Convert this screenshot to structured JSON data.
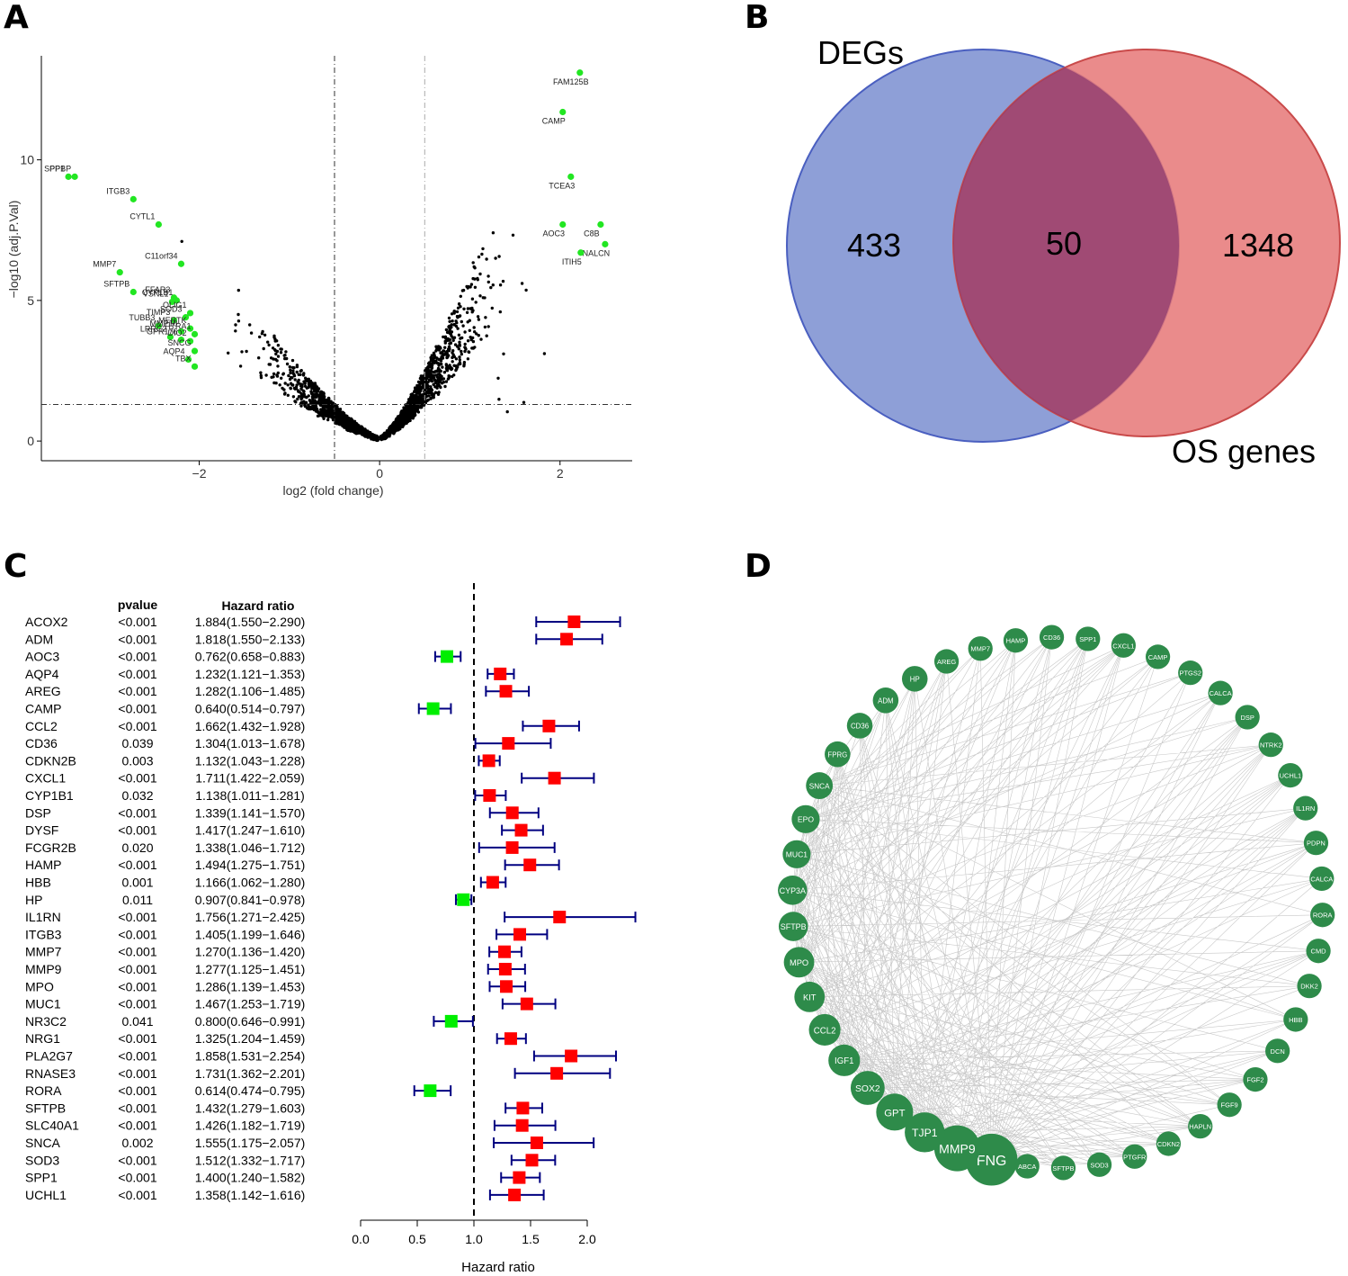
{
  "panels": {
    "a": "A",
    "b": "B",
    "c": "C",
    "d": "D"
  },
  "chart_data": [
    {
      "type": "scatter",
      "panel": "A",
      "xlabel": "log2 (fold change)",
      "ylabel": "−log10 (adj.P.Val)",
      "xlim": [
        -3.75,
        2.8
      ],
      "ylim": [
        -0.7,
        13.7
      ],
      "xticks": [
        -2,
        0,
        2
      ],
      "xtick_labels": [
        "−2",
        "0",
        "2"
      ],
      "yticks": [
        0,
        5,
        10
      ],
      "ytick_labels": [
        "0",
        "5",
        "10"
      ],
      "thresholds": {
        "logfc": [
          -0.5,
          0.5
        ],
        "padj_log": 1.3
      },
      "highlighted": [
        {
          "label": "FAM125B",
          "x": 2.22,
          "y": 13.1
        },
        {
          "label": "CAMP",
          "x": 2.03,
          "y": 11.7
        },
        {
          "label": "TCEA3",
          "x": 2.12,
          "y": 9.4
        },
        {
          "label": "C8B",
          "x": 2.45,
          "y": 7.7
        },
        {
          "label": "AOC3",
          "x": 2.03,
          "y": 7.7
        },
        {
          "label": "NALCN",
          "x": 2.5,
          "y": 7.0
        },
        {
          "label": "ITIH5",
          "x": 2.23,
          "y": 6.7
        },
        {
          "label": "PPBP",
          "x": -3.38,
          "y": 9.4
        },
        {
          "label": "SPP1",
          "x": -3.45,
          "y": 9.4
        },
        {
          "label": "ITGB3",
          "x": -2.73,
          "y": 8.6
        },
        {
          "label": "CYTL1",
          "x": -2.45,
          "y": 7.7
        },
        {
          "label": "C11orf34",
          "x": -2.2,
          "y": 6.3
        },
        {
          "label": "MMP7",
          "x": -2.88,
          "y": 6.0
        },
        {
          "label": "SFTPB",
          "x": -2.73,
          "y": 5.3
        },
        {
          "label": "FFAR3",
          "x": -2.28,
          "y": 5.1
        },
        {
          "label": "VSNL1",
          "x": -2.3,
          "y": 4.95
        },
        {
          "label": "CYP1B1",
          "x": -2.25,
          "y": 5.0
        },
        {
          "label": "TIMP3",
          "x": -2.28,
          "y": 4.3
        },
        {
          "label": "SOD3",
          "x": -2.15,
          "y": 4.4
        },
        {
          "label": "OLIG1",
          "x": -2.1,
          "y": 4.55
        },
        {
          "label": "TUBB3",
          "x": -2.45,
          "y": 4.1
        },
        {
          "label": "MMP10",
          "x": -2.2,
          "y": 3.9
        },
        {
          "label": "MERTK",
          "x": -2.1,
          "y": 4.0
        },
        {
          "label": "HTRA1",
          "x": -2.05,
          "y": 3.8
        },
        {
          "label": "LRRC2",
          "x": -2.32,
          "y": 3.7
        },
        {
          "label": "DIO2",
          "x": -2.1,
          "y": 3.55
        },
        {
          "label": "GPR176",
          "x": -2.2,
          "y": 3.6
        },
        {
          "label": "SNCG",
          "x": -2.05,
          "y": 3.2
        },
        {
          "label": "AQP4",
          "x": -2.12,
          "y": 2.9
        },
        {
          "label": "TBX",
          "x": -2.05,
          "y": 2.65
        }
      ]
    },
    {
      "type": "venn",
      "panel": "B",
      "sets": [
        {
          "name": "DEGs",
          "only": 433,
          "color": "#7b8fd0"
        },
        {
          "name": "OS genes",
          "only": 1348,
          "color": "#e77878"
        }
      ],
      "intersection": 50,
      "labels": {
        "left_only": "433",
        "both": "50",
        "right_only": "1348"
      }
    },
    {
      "type": "forest",
      "panel": "C",
      "columns": {
        "pvalue": "pvalue",
        "hr": "Hazard ratio"
      },
      "xlabel": "Hazard ratio",
      "xlim": [
        0.0,
        2.0
      ],
      "xticks": [
        0.0,
        0.5,
        1.0,
        1.5,
        2.0
      ],
      "xtick_labels": [
        "0.0",
        "0.5",
        "1.0",
        "1.5",
        "2.0"
      ],
      "reference": 1.0,
      "colors": {
        "risk": "#ff0000",
        "protective": "#00ee00",
        "ci": "#000080"
      },
      "rows": [
        {
          "gene": "ACOX2",
          "p": "<0.001",
          "hr_text": "1.884(1.550−2.290)",
          "hr": 1.884,
          "lo": 1.55,
          "hi": 2.29
        },
        {
          "gene": "ADM",
          "p": "<0.001",
          "hr_text": "1.818(1.550−2.133)",
          "hr": 1.818,
          "lo": 1.55,
          "hi": 2.133
        },
        {
          "gene": "AOC3",
          "p": "<0.001",
          "hr_text": "0.762(0.658−0.883)",
          "hr": 0.762,
          "lo": 0.658,
          "hi": 0.883
        },
        {
          "gene": "AQP4",
          "p": "<0.001",
          "hr_text": "1.232(1.121−1.353)",
          "hr": 1.232,
          "lo": 1.121,
          "hi": 1.353
        },
        {
          "gene": "AREG",
          "p": "<0.001",
          "hr_text": "1.282(1.106−1.485)",
          "hr": 1.282,
          "lo": 1.106,
          "hi": 1.485
        },
        {
          "gene": "CAMP",
          "p": "<0.001",
          "hr_text": "0.640(0.514−0.797)",
          "hr": 0.64,
          "lo": 0.514,
          "hi": 0.797
        },
        {
          "gene": "CCL2",
          "p": "<0.001",
          "hr_text": "1.662(1.432−1.928)",
          "hr": 1.662,
          "lo": 1.432,
          "hi": 1.928
        },
        {
          "gene": "CD36",
          "p": "0.039",
          "hr_text": "1.304(1.013−1.678)",
          "hr": 1.304,
          "lo": 1.013,
          "hi": 1.678
        },
        {
          "gene": "CDKN2B",
          "p": "0.003",
          "hr_text": "1.132(1.043−1.228)",
          "hr": 1.132,
          "lo": 1.043,
          "hi": 1.228
        },
        {
          "gene": "CXCL1",
          "p": "<0.001",
          "hr_text": "1.711(1.422−2.059)",
          "hr": 1.711,
          "lo": 1.422,
          "hi": 2.059
        },
        {
          "gene": "CYP1B1",
          "p": "0.032",
          "hr_text": "1.138(1.011−1.281)",
          "hr": 1.138,
          "lo": 1.011,
          "hi": 1.281
        },
        {
          "gene": "DSP",
          "p": "<0.001",
          "hr_text": "1.339(1.141−1.570)",
          "hr": 1.339,
          "lo": 1.141,
          "hi": 1.57
        },
        {
          "gene": "DYSF",
          "p": "<0.001",
          "hr_text": "1.417(1.247−1.610)",
          "hr": 1.417,
          "lo": 1.247,
          "hi": 1.61
        },
        {
          "gene": "FCGR2B",
          "p": "0.020",
          "hr_text": "1.338(1.046−1.712)",
          "hr": 1.338,
          "lo": 1.046,
          "hi": 1.712
        },
        {
          "gene": "HAMP",
          "p": "<0.001",
          "hr_text": "1.494(1.275−1.751)",
          "hr": 1.494,
          "lo": 1.275,
          "hi": 1.751
        },
        {
          "gene": "HBB",
          "p": "0.001",
          "hr_text": "1.166(1.062−1.280)",
          "hr": 1.166,
          "lo": 1.062,
          "hi": 1.28
        },
        {
          "gene": "HP",
          "p": "0.011",
          "hr_text": "0.907(0.841−0.978)",
          "hr": 0.907,
          "lo": 0.841,
          "hi": 0.978
        },
        {
          "gene": "IL1RN",
          "p": "<0.001",
          "hr_text": "1.756(1.271−2.425)",
          "hr": 1.756,
          "lo": 1.271,
          "hi": 2.425
        },
        {
          "gene": "ITGB3",
          "p": "<0.001",
          "hr_text": "1.405(1.199−1.646)",
          "hr": 1.405,
          "lo": 1.199,
          "hi": 1.646
        },
        {
          "gene": "MMP7",
          "p": "<0.001",
          "hr_text": "1.270(1.136−1.420)",
          "hr": 1.27,
          "lo": 1.136,
          "hi": 1.42
        },
        {
          "gene": "MMP9",
          "p": "<0.001",
          "hr_text": "1.277(1.125−1.451)",
          "hr": 1.277,
          "lo": 1.125,
          "hi": 1.451
        },
        {
          "gene": "MPO",
          "p": "<0.001",
          "hr_text": "1.286(1.139−1.453)",
          "hr": 1.286,
          "lo": 1.139,
          "hi": 1.453
        },
        {
          "gene": "MUC1",
          "p": "<0.001",
          "hr_text": "1.467(1.253−1.719)",
          "hr": 1.467,
          "lo": 1.253,
          "hi": 1.719
        },
        {
          "gene": "NR3C2",
          "p": "0.041",
          "hr_text": "0.800(0.646−0.991)",
          "hr": 0.8,
          "lo": 0.646,
          "hi": 0.991
        },
        {
          "gene": "NRG1",
          "p": "<0.001",
          "hr_text": "1.325(1.204−1.459)",
          "hr": 1.325,
          "lo": 1.204,
          "hi": 1.459
        },
        {
          "gene": "PLA2G7",
          "p": "<0.001",
          "hr_text": "1.858(1.531−2.254)",
          "hr": 1.858,
          "lo": 1.531,
          "hi": 2.254
        },
        {
          "gene": "RNASE3",
          "p": "<0.001",
          "hr_text": "1.731(1.362−2.201)",
          "hr": 1.731,
          "lo": 1.362,
          "hi": 2.201
        },
        {
          "gene": "RORA",
          "p": "<0.001",
          "hr_text": "0.614(0.474−0.795)",
          "hr": 0.614,
          "lo": 0.474,
          "hi": 0.795
        },
        {
          "gene": "SFTPB",
          "p": "<0.001",
          "hr_text": "1.432(1.279−1.603)",
          "hr": 1.432,
          "lo": 1.279,
          "hi": 1.603
        },
        {
          "gene": "SLC40A1",
          "p": "<0.001",
          "hr_text": "1.426(1.182−1.719)",
          "hr": 1.426,
          "lo": 1.182,
          "hi": 1.719
        },
        {
          "gene": "SNCA",
          "p": "0.002",
          "hr_text": "1.555(1.175−2.057)",
          "hr": 1.555,
          "lo": 1.175,
          "hi": 2.057
        },
        {
          "gene": "SOD3",
          "p": "<0.001",
          "hr_text": "1.512(1.332−1.717)",
          "hr": 1.512,
          "lo": 1.332,
          "hi": 1.717
        },
        {
          "gene": "SPP1",
          "p": "<0.001",
          "hr_text": "1.400(1.240−1.582)",
          "hr": 1.4,
          "lo": 1.24,
          "hi": 1.582
        },
        {
          "gene": "UCHL1",
          "p": "<0.001",
          "hr_text": "1.358(1.142−1.616)",
          "hr": 1.358,
          "lo": 1.142,
          "hi": 1.616
        }
      ]
    },
    {
      "type": "network",
      "panel": "D",
      "node_color": "#2e8b4a",
      "nodes": [
        {
          "label": "FNG",
          "weight": 6
        },
        {
          "label": "MMP9",
          "weight": 5
        },
        {
          "label": "TJP1",
          "weight": 4
        },
        {
          "label": "GPT",
          "weight": 3.5
        },
        {
          "label": "SOX2",
          "weight": 3
        },
        {
          "label": "IGF1",
          "weight": 2.6
        },
        {
          "label": "CCL2",
          "weight": 2.6
        },
        {
          "label": "KIT",
          "weight": 2.4
        },
        {
          "label": "MPO",
          "weight": 2.4
        },
        {
          "label": "SFTPB",
          "weight": 2.2
        },
        {
          "label": "CYP3A",
          "weight": 2.2
        },
        {
          "label": "MUC1",
          "weight": 2.0
        },
        {
          "label": "EPO",
          "weight": 2.0
        },
        {
          "label": "SNCA",
          "weight": 1.8
        },
        {
          "label": "FPRG",
          "weight": 1.6
        },
        {
          "label": "CD36",
          "weight": 1.6
        },
        {
          "label": "ADM",
          "weight": 1.6
        },
        {
          "label": "HP",
          "weight": 1.6
        },
        {
          "label": "AREG",
          "weight": 1.4
        },
        {
          "label": "MMP7",
          "weight": 1.4
        },
        {
          "label": "HAMP",
          "weight": 1.4
        },
        {
          "label": "CD36",
          "weight": 1.4
        },
        {
          "label": "SPP1",
          "weight": 1.4
        },
        {
          "label": "CXCL1",
          "weight": 1.4
        },
        {
          "label": "CAMP",
          "weight": 1.4
        },
        {
          "label": "PTGS2",
          "weight": 1.4
        },
        {
          "label": "CALCA",
          "weight": 1.4
        },
        {
          "label": "DSP",
          "weight": 1.4
        },
        {
          "label": "NTRK2",
          "weight": 1.4
        },
        {
          "label": "UCHL1",
          "weight": 1.4
        },
        {
          "label": "IL1RN",
          "weight": 1.4
        },
        {
          "label": "PDPN",
          "weight": 1.4
        },
        {
          "label": "CALCA",
          "weight": 1.4
        },
        {
          "label": "RORA",
          "weight": 1.4
        },
        {
          "label": "CMD",
          "weight": 1.4
        },
        {
          "label": "DKK2",
          "weight": 1.4
        },
        {
          "label": "HBB",
          "weight": 1.4
        },
        {
          "label": "DCN",
          "weight": 1.4
        },
        {
          "label": "FGF2",
          "weight": 1.4
        },
        {
          "label": "FGF9",
          "weight": 1.4
        },
        {
          "label": "HAPLN",
          "weight": 1.4
        },
        {
          "label": "CDKN2",
          "weight": 1.4
        },
        {
          "label": "PTGFR",
          "weight": 1.4
        },
        {
          "label": "SOD3",
          "weight": 1.4
        },
        {
          "label": "SFTPB",
          "weight": 1.4
        },
        {
          "label": "ABCA",
          "weight": 1.4
        }
      ]
    }
  ]
}
